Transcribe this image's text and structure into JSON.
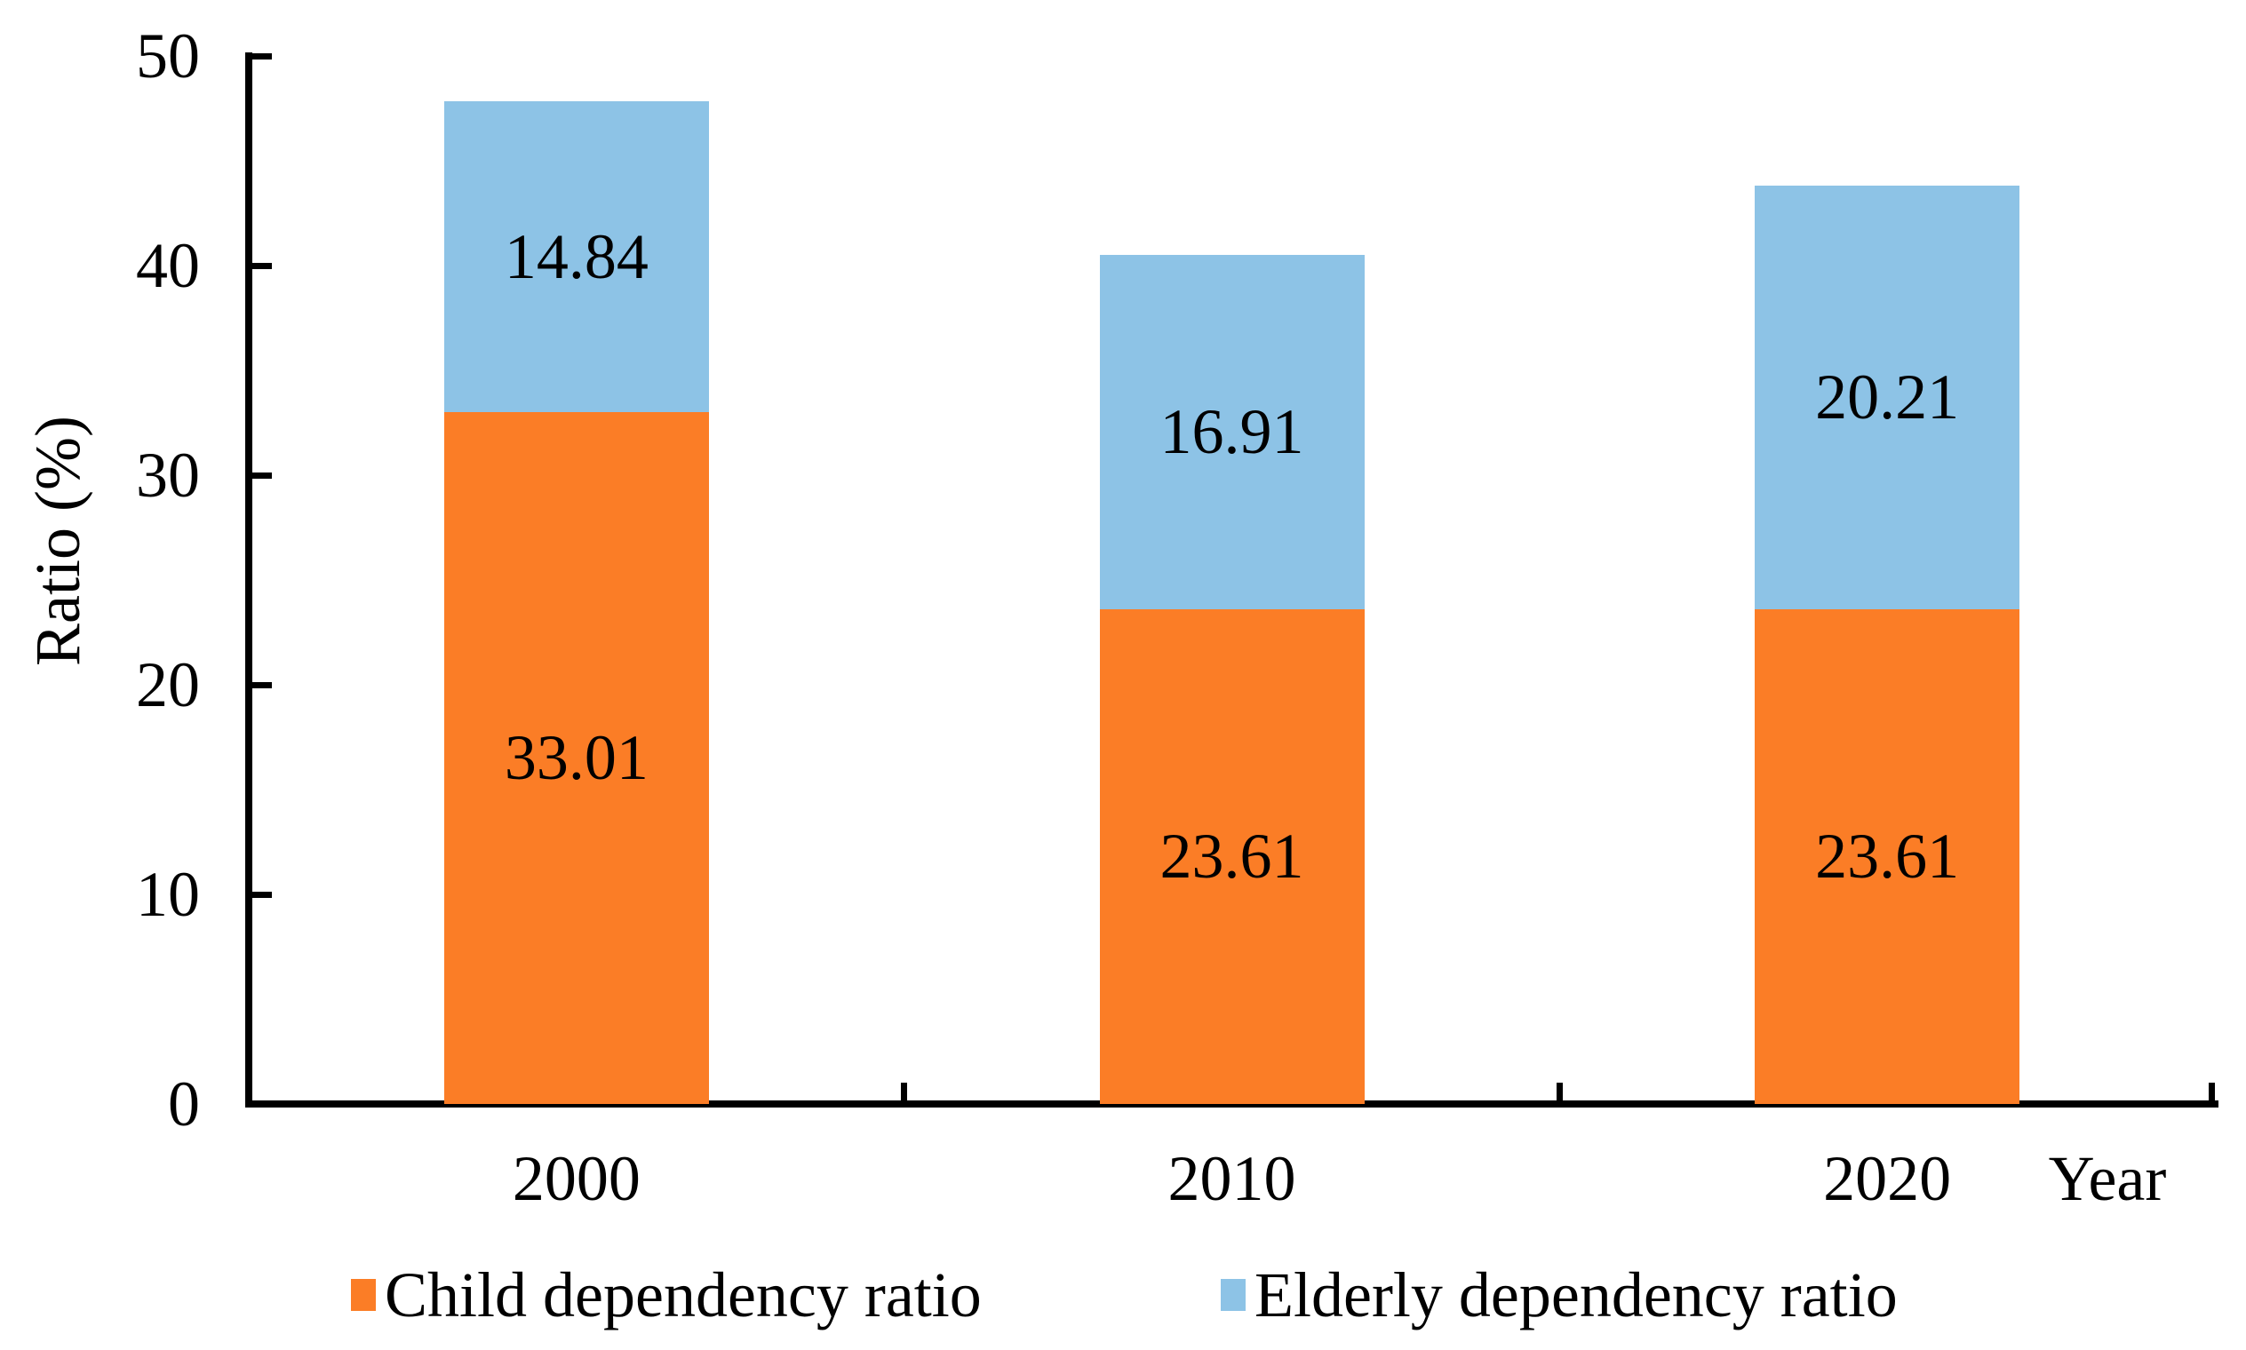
{
  "chart_data": {
    "type": "bar",
    "stacked": true,
    "title": "",
    "xlabel": "Year",
    "ylabel": "Ratio (%)",
    "categories": [
      "2000",
      "2010",
      "2020"
    ],
    "series": [
      {
        "name": "Child dependency ratio",
        "color": "#FB7D26",
        "values": [
          33.01,
          23.61,
          23.61
        ]
      },
      {
        "name": "Elderly dependency ratio",
        "color": "#8DC3E6",
        "values": [
          14.84,
          16.91,
          20.21
        ]
      }
    ],
    "ylim": [
      0,
      50
    ],
    "yticks": [
      "0",
      "10",
      "20",
      "30",
      "40",
      "50"
    ],
    "grid": false,
    "legend_position": "bottom",
    "value_label_decimals": 2
  },
  "style": {
    "axis_color": "#000000",
    "text_color": "#000000",
    "background": "#FFFFFF"
  }
}
